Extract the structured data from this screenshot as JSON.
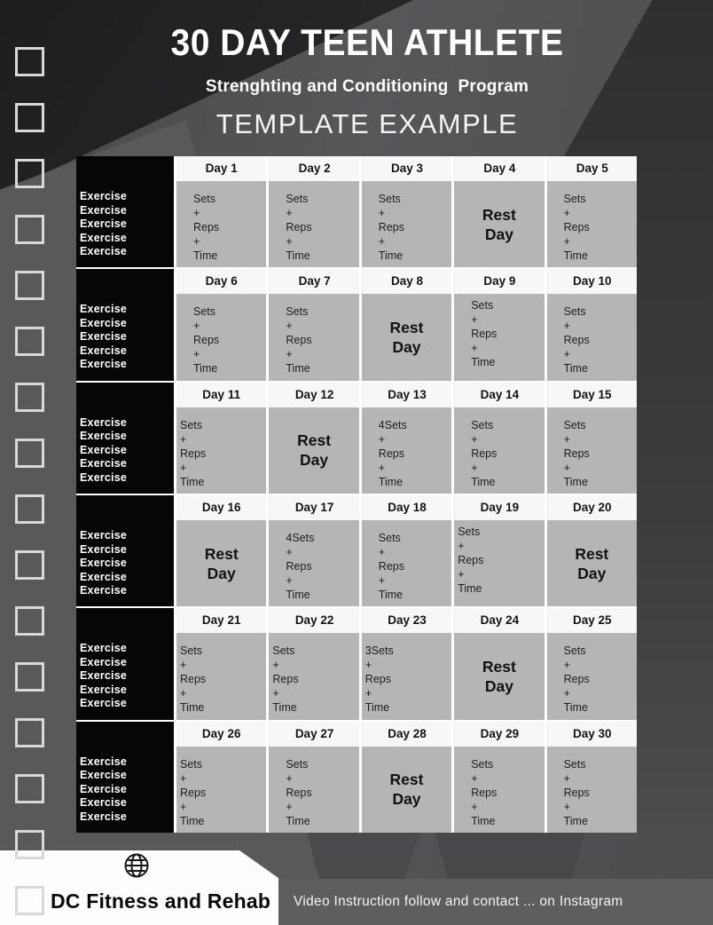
{
  "header": {
    "title": "30 DAY TEEN ATHLETE",
    "subtitle": "Strenghting and Conditioning  Program",
    "template_label": "TEMPLATE EXAMPLE"
  },
  "sidebar": {
    "checkbox_count": 16
  },
  "program": {
    "exercise_label": "Exercise",
    "exercises_per_day": 5,
    "weeks": [
      {
        "days": [
          {
            "label": "Day 1",
            "type": "work",
            "lines": [
              "Sets",
              "+",
              "Reps",
              "+",
              "Time"
            ]
          },
          {
            "label": "Day 2",
            "type": "work",
            "lines": [
              "Sets",
              "+",
              "Reps",
              "+",
              "Time"
            ]
          },
          {
            "label": "Day 3",
            "type": "work",
            "lines": [
              "Sets",
              "+",
              "Reps",
              "+",
              "Time"
            ]
          },
          {
            "label": "Day 4",
            "type": "rest",
            "lines": [
              "Rest",
              "Day"
            ]
          },
          {
            "label": "Day 5",
            "type": "work",
            "lines": [
              "Sets",
              "+",
              "Reps",
              "+",
              "Time"
            ]
          }
        ]
      },
      {
        "days": [
          {
            "label": "Day 6",
            "type": "work",
            "lines": [
              "Sets",
              "+",
              "Reps",
              "+",
              "Time"
            ]
          },
          {
            "label": "Day 7",
            "type": "work",
            "lines": [
              "Sets",
              "+",
              "Reps",
              "+",
              "Time"
            ]
          },
          {
            "label": "Day 8",
            "type": "rest",
            "lines": [
              "Rest",
              "Day"
            ]
          },
          {
            "label": "Day 9",
            "type": "work",
            "raised": true,
            "lines": [
              "Sets",
              "+",
              "Reps",
              "+",
              "Time"
            ]
          },
          {
            "label": "Day 10",
            "type": "work",
            "lines": [
              "Sets",
              "+",
              "Reps",
              "+",
              "Time"
            ]
          }
        ]
      },
      {
        "days": [
          {
            "label": "Day 11",
            "type": "work",
            "flush": true,
            "lines": [
              "Sets",
              "+",
              "Reps",
              "+",
              "Time"
            ]
          },
          {
            "label": "Day 12",
            "type": "rest",
            "lines": [
              "Rest",
              "Day"
            ]
          },
          {
            "label": "Day 13",
            "type": "work",
            "lines": [
              "4Sets",
              "+",
              "Reps",
              "+",
              "Time"
            ]
          },
          {
            "label": "Day 14",
            "type": "work",
            "lines": [
              "Sets",
              "+",
              "Reps",
              "+",
              "Time"
            ]
          },
          {
            "label": "Day 15",
            "type": "work",
            "lines": [
              "Sets",
              "+",
              "Reps",
              "+",
              "Time"
            ]
          }
        ]
      },
      {
        "days": [
          {
            "label": "Day 16",
            "type": "rest",
            "lines": [
              "Rest",
              "Day"
            ]
          },
          {
            "label": "Day 17",
            "type": "work",
            "lines": [
              "4Sets",
              "+",
              "Reps",
              "+",
              "Time"
            ]
          },
          {
            "label": "Day 18",
            "type": "work",
            "lines": [
              "Sets",
              "+",
              "Reps",
              "+",
              "Time"
            ]
          },
          {
            "label": "Day 19",
            "type": "work",
            "flush": true,
            "raised": true,
            "lines": [
              "Sets",
              "+",
              "Reps",
              "+",
              "Time"
            ]
          },
          {
            "label": "Day 20",
            "type": "rest",
            "lines": [
              "Rest",
              "Day"
            ]
          }
        ]
      },
      {
        "days": [
          {
            "label": "Day 21",
            "type": "work",
            "flush": true,
            "lines": [
              "Sets",
              "+",
              "Reps",
              "+",
              "Time"
            ]
          },
          {
            "label": "Day 22",
            "type": "work",
            "flush": true,
            "lines": [
              "Sets",
              "+",
              "Reps",
              "+",
              "Time"
            ]
          },
          {
            "label": "Day 23",
            "type": "work",
            "flush": true,
            "lines": [
              "3Sets",
              "+",
              "Reps",
              "+",
              "Time"
            ]
          },
          {
            "label": "Day 24",
            "type": "rest",
            "lines": [
              "Rest",
              "Day"
            ]
          },
          {
            "label": "Day 25",
            "type": "work",
            "lines": [
              "Sets",
              "+",
              "Reps",
              "+",
              "Time"
            ]
          }
        ]
      },
      {
        "days": [
          {
            "label": "Day 26",
            "type": "work",
            "flush": true,
            "lines": [
              "Sets",
              "+",
              "Reps",
              "+",
              "Time"
            ]
          },
          {
            "label": "Day 27",
            "type": "work",
            "lines": [
              "Sets",
              "+",
              "Reps",
              "+",
              "Time"
            ]
          },
          {
            "label": "Day 28",
            "type": "rest",
            "lines": [
              "Rest",
              "Day"
            ]
          },
          {
            "label": "Day 29",
            "type": "work",
            "lines": [
              "Sets",
              "+",
              "Reps",
              "+",
              "Time"
            ]
          },
          {
            "label": "Day 30",
            "type": "work",
            "lines": [
              "Sets",
              "+",
              "Reps",
              "+",
              "Time"
            ]
          }
        ]
      }
    ]
  },
  "footer": {
    "brand": "DC Fitness and Rehab",
    "globe_icon": "globe-icon",
    "note": "Video Instruction follow and contact ... on Instagram"
  },
  "colors": {
    "table_cell": "#b5b5b5",
    "table_header": "#f7f7f7",
    "exercise_column": "#060607",
    "note_bar": "#5e5e5e",
    "banner": "#fdfdfd",
    "background_light": "#595959",
    "background_dark": "#2f2f31"
  }
}
